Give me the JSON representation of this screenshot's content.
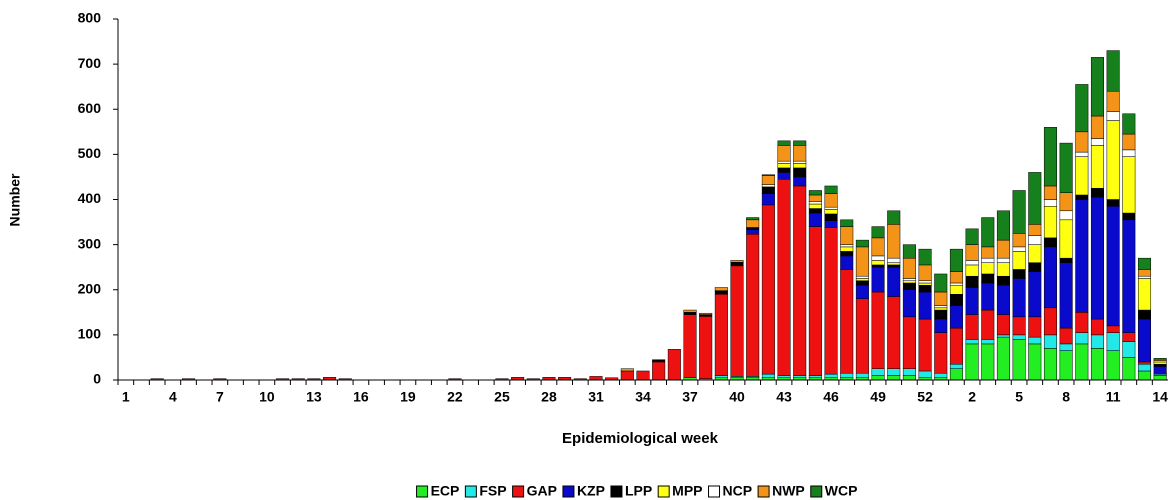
{
  "chart_data": {
    "type": "stacked_bar",
    "y_label": "Number",
    "x_label": "Epidemiological week",
    "ylim": [
      0,
      800
    ],
    "yticks": [
      0,
      100,
      200,
      300,
      400,
      500,
      600,
      700,
      800
    ],
    "categories": [
      "1",
      null,
      null,
      "4",
      null,
      null,
      "7",
      null,
      null,
      "10",
      null,
      null,
      "13",
      null,
      null,
      "16",
      null,
      null,
      "19",
      null,
      null,
      "22",
      null,
      null,
      "25",
      null,
      null,
      "28",
      null,
      null,
      "31",
      null,
      null,
      "34",
      null,
      null,
      "37",
      null,
      null,
      "40",
      null,
      null,
      "43",
      null,
      null,
      "46",
      null,
      null,
      "49",
      null,
      null,
      "52",
      null,
      null,
      "2",
      null,
      null,
      "5",
      null,
      null,
      "8",
      null,
      null,
      "11",
      null,
      null,
      "14"
    ],
    "series": [
      {
        "name": "ECP",
        "color": "#22ee22",
        "values": [
          0,
          0,
          0,
          0,
          0,
          0,
          0,
          0,
          0,
          0,
          0,
          0,
          0,
          0,
          0,
          0,
          0,
          0,
          0,
          0,
          0,
          0,
          0,
          0,
          0,
          0,
          0,
          0,
          0,
          0,
          0,
          0,
          0,
          0,
          0,
          0,
          5,
          3,
          5,
          5,
          5,
          5,
          5,
          5,
          5,
          5,
          5,
          5,
          10,
          10,
          10,
          5,
          5,
          25,
          80,
          80,
          95,
          90,
          80,
          70,
          65,
          80,
          70,
          65,
          50,
          20,
          10
        ]
      },
      {
        "name": "FSP",
        "color": "#22e8e8",
        "values": [
          0,
          0,
          0,
          0,
          0,
          0,
          0,
          0,
          0,
          0,
          0,
          0,
          0,
          0,
          0,
          0,
          0,
          0,
          0,
          0,
          0,
          0,
          0,
          0,
          0,
          0,
          0,
          0,
          0,
          0,
          0,
          0,
          0,
          0,
          0,
          0,
          0,
          0,
          5,
          3,
          3,
          8,
          5,
          5,
          5,
          8,
          10,
          10,
          15,
          15,
          15,
          15,
          10,
          10,
          10,
          10,
          5,
          10,
          15,
          30,
          15,
          25,
          30,
          40,
          35,
          15,
          3
        ]
      },
      {
        "name": "GAP",
        "color": "#ee1111",
        "values": [
          0,
          0,
          3,
          0,
          3,
          0,
          3,
          0,
          0,
          0,
          3,
          3,
          3,
          6,
          3,
          0,
          0,
          0,
          0,
          0,
          0,
          3,
          0,
          0,
          3,
          6,
          3,
          6,
          6,
          3,
          8,
          5,
          20,
          20,
          40,
          68,
          140,
          138,
          180,
          245,
          315,
          375,
          435,
          420,
          330,
          325,
          230,
          165,
          170,
          160,
          115,
          115,
          90,
          80,
          55,
          65,
          45,
          40,
          45,
          60,
          35,
          45,
          35,
          15,
          20,
          5,
          2
        ]
      },
      {
        "name": "KZP",
        "color": "#0a0acc",
        "values": [
          0,
          0,
          0,
          0,
          0,
          0,
          0,
          0,
          0,
          0,
          0,
          0,
          0,
          0,
          0,
          0,
          0,
          0,
          0,
          0,
          0,
          0,
          0,
          0,
          0,
          0,
          0,
          0,
          0,
          0,
          0,
          0,
          0,
          0,
          0,
          0,
          0,
          0,
          0,
          0,
          10,
          25,
          15,
          20,
          30,
          15,
          30,
          30,
          55,
          65,
          60,
          60,
          30,
          50,
          60,
          60,
          65,
          85,
          100,
          135,
          145,
          250,
          270,
          265,
          250,
          95,
          15
        ]
      },
      {
        "name": "LPP",
        "color": "#000000",
        "values": [
          0,
          0,
          0,
          0,
          0,
          0,
          0,
          0,
          0,
          0,
          0,
          0,
          0,
          0,
          0,
          0,
          0,
          0,
          0,
          0,
          0,
          0,
          0,
          0,
          0,
          0,
          0,
          0,
          0,
          0,
          0,
          0,
          0,
          0,
          5,
          0,
          5,
          4,
          8,
          8,
          5,
          15,
          10,
          20,
          10,
          15,
          10,
          10,
          5,
          5,
          15,
          15,
          20,
          25,
          25,
          20,
          20,
          20,
          20,
          20,
          10,
          10,
          20,
          15,
          15,
          20,
          5
        ]
      },
      {
        "name": "MPP",
        "color": "#ffff11",
        "values": [
          0,
          0,
          0,
          0,
          0,
          0,
          0,
          0,
          0,
          0,
          0,
          0,
          0,
          0,
          0,
          0,
          0,
          0,
          0,
          0,
          0,
          0,
          0,
          0,
          0,
          0,
          0,
          0,
          0,
          0,
          0,
          0,
          0,
          0,
          0,
          0,
          0,
          0,
          0,
          0,
          0,
          0,
          10,
          10,
          10,
          10,
          10,
          5,
          10,
          5,
          5,
          5,
          5,
          20,
          25,
          25,
          30,
          40,
          40,
          70,
          85,
          85,
          95,
          175,
          125,
          70,
          5
        ]
      },
      {
        "name": "NCP",
        "color": "#ffffff",
        "values": [
          0,
          0,
          0,
          0,
          0,
          0,
          0,
          0,
          0,
          0,
          0,
          0,
          0,
          0,
          0,
          0,
          0,
          0,
          0,
          0,
          0,
          0,
          0,
          0,
          0,
          0,
          0,
          0,
          0,
          0,
          0,
          0,
          0,
          0,
          0,
          0,
          0,
          0,
          0,
          0,
          0,
          5,
          5,
          5,
          5,
          5,
          5,
          5,
          10,
          10,
          5,
          5,
          5,
          5,
          10,
          10,
          10,
          10,
          20,
          15,
          20,
          10,
          15,
          20,
          15,
          5,
          3
        ]
      },
      {
        "name": "NWP",
        "color": "#f39318",
        "values": [
          0,
          0,
          0,
          0,
          0,
          0,
          0,
          0,
          0,
          0,
          0,
          0,
          0,
          0,
          0,
          0,
          0,
          0,
          0,
          0,
          0,
          0,
          0,
          0,
          0,
          0,
          0,
          0,
          0,
          0,
          0,
          0,
          5,
          0,
          0,
          0,
          5,
          3,
          7,
          4,
          17,
          20,
          35,
          35,
          15,
          30,
          40,
          65,
          40,
          75,
          45,
          35,
          30,
          25,
          35,
          25,
          40,
          30,
          25,
          30,
          40,
          45,
          50,
          45,
          35,
          15,
          3
        ]
      },
      {
        "name": "WCP",
        "color": "#16801d",
        "values": [
          0,
          0,
          0,
          0,
          0,
          0,
          0,
          0,
          0,
          0,
          0,
          0,
          0,
          0,
          0,
          0,
          0,
          0,
          0,
          0,
          0,
          0,
          0,
          0,
          0,
          0,
          0,
          0,
          0,
          0,
          0,
          0,
          0,
          0,
          0,
          0,
          0,
          0,
          0,
          0,
          5,
          2,
          10,
          10,
          10,
          17,
          15,
          15,
          25,
          30,
          30,
          35,
          40,
          50,
          35,
          65,
          65,
          95,
          115,
          130,
          110,
          105,
          130,
          90,
          45,
          25,
          2
        ]
      }
    ]
  }
}
